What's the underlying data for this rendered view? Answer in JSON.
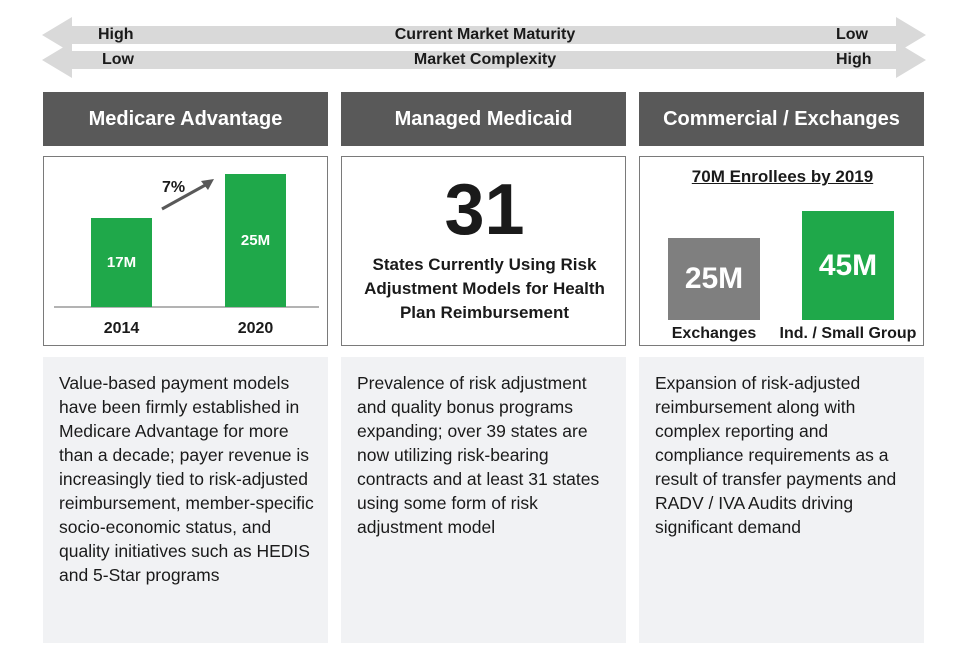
{
  "scale": {
    "maturity": {
      "left": "High",
      "center": "Current Market Maturity",
      "right": "Low"
    },
    "complexity": {
      "left": "Low",
      "center": "Market Complexity",
      "right": "High"
    }
  },
  "columns": [
    {
      "header": "Medicare Advantage",
      "chart": {
        "categories": [
          "2014",
          "2020"
        ],
        "values": [
          "17M",
          "25M"
        ],
        "growth_label": "7%"
      },
      "description": "Value-based payment models have been firmly established in Medicare Advantage for more than a decade; payer revenue is increasingly tied to risk-adjusted reimbursement, member-specific socio-economic status, and quality initiatives such as HEDIS and 5-Star programs"
    },
    {
      "header": "Managed Medicaid",
      "big_number": "31",
      "big_caption": "States Currently Using Risk Adjustment Models for Health Plan Reimbursement",
      "description": "Prevalence of risk adjustment and quality bonus programs expanding; over 39 states are now utilizing risk-bearing contracts and at least 31 states using some form of risk adjustment model"
    },
    {
      "header": "Commercial / Exchanges",
      "chart": {
        "title": "70M Enrollees by 2019",
        "categories": [
          "Exchanges",
          "Ind. / Small Group"
        ],
        "values": [
          "25M",
          "45M"
        ]
      },
      "description": "Expansion of risk-adjusted reimbursement along with complex reporting and compliance requirements as a result of transfer payments and RADV / IVA Audits driving significant demand"
    }
  ],
  "colors": {
    "header_bg": "#595959",
    "green": "#1fa84a",
    "gray": "#7f7f7f",
    "desc_bg": "#f1f2f4",
    "arrow": "#d9d9d9"
  }
}
